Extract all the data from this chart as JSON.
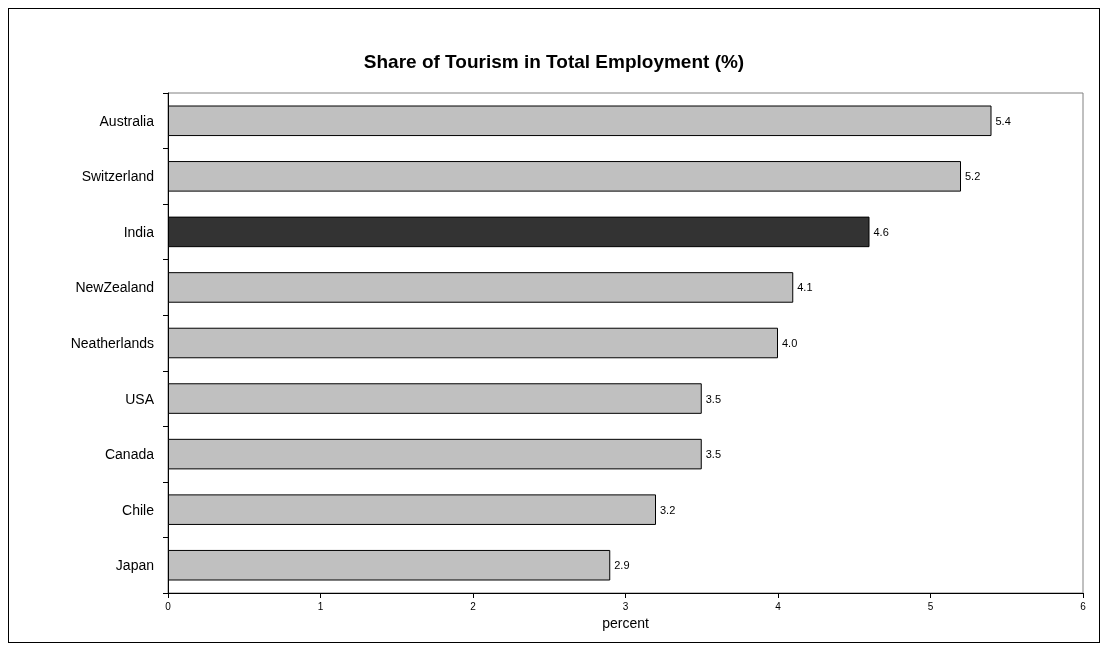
{
  "chart_data": {
    "type": "bar",
    "orientation": "horizontal",
    "title": "Share of Tourism in Total Employment (%)",
    "xlabel": "percent",
    "categories": [
      "Australia",
      "Switzerland",
      "India",
      "NewZealand",
      "Neatherlands",
      "USA",
      "Canada",
      "Chile",
      "Japan"
    ],
    "values": [
      5.4,
      5.2,
      4.6,
      4.1,
      4.0,
      3.5,
      3.5,
      3.2,
      2.9
    ],
    "colors": [
      "#c0c0c0",
      "#c0c0c0",
      "#333333",
      "#c0c0c0",
      "#c0c0c0",
      "#c0c0c0",
      "#c0c0c0",
      "#c0c0c0",
      "#c0c0c0"
    ],
    "value_labels": [
      "5.4",
      "5.2",
      "4.6",
      "4.1",
      "4.0",
      "3.5",
      "3.5",
      "3.2",
      "2.9"
    ],
    "xlim": [
      0,
      6
    ],
    "xticks": [
      0,
      1,
      2,
      3,
      4,
      5,
      6
    ],
    "grid": false
  }
}
